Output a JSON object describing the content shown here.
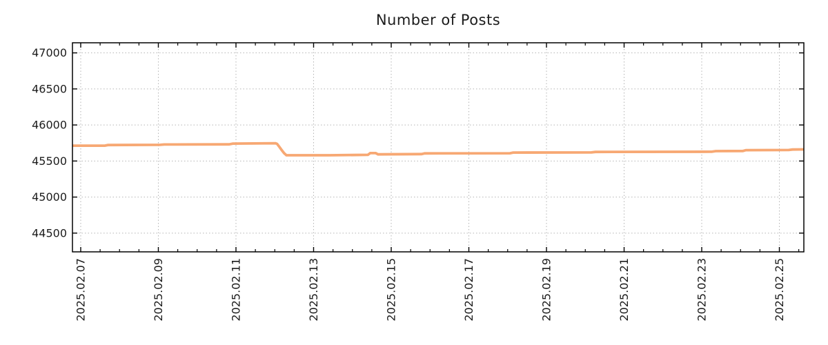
{
  "title": "Number of Posts",
  "colors": {
    "line": "#f7a873",
    "grid": "#b3b3b3",
    "axis": "#000000",
    "text": "#1c1c1c",
    "background": "#ffffff"
  },
  "chart_data": {
    "type": "line",
    "title": "Number of Posts",
    "xlabel": "",
    "ylabel": "",
    "legend": "none",
    "grid": {
      "style": "dotted",
      "color": "#b3b3b3",
      "on_major_ticks_only": true
    },
    "x_axis": {
      "unit": "days-since-2025.02.07",
      "range_days": [
        -0.213,
        18.631
      ],
      "major_tick_days": [
        0,
        2,
        4,
        6,
        8,
        10,
        12,
        14,
        16,
        18
      ],
      "tick_labels": [
        "2025.02.07",
        "2025.02.09",
        "2025.02.11",
        "2025.02.13",
        "2025.02.15",
        "2025.02.17",
        "2025.02.19",
        "2025.02.21",
        "2025.02.23",
        "2025.02.25"
      ],
      "minor_tick_interval_days": 0.5,
      "label_rotation_degrees": -90
    },
    "y_axis": {
      "range": [
        44240,
        47140
      ],
      "tick_values": [
        44500,
        45000,
        45500,
        46000,
        46500,
        47000
      ],
      "tick_labels": [
        "44500",
        "45000",
        "45500",
        "46000",
        "46500",
        "47000"
      ]
    },
    "series": [
      {
        "name": "number-of-posts",
        "color": "#f7a873",
        "stroke_width": 3.8,
        "points": [
          [
            -0.213,
            45713
          ],
          [
            0.62,
            45713
          ],
          [
            0.7,
            45722
          ],
          [
            2.05,
            45724
          ],
          [
            2.15,
            45729
          ],
          [
            3.82,
            45731
          ],
          [
            3.92,
            45742
          ],
          [
            5.02,
            45746
          ],
          [
            5.06,
            45738
          ],
          [
            5.12,
            45695
          ],
          [
            5.18,
            45650
          ],
          [
            5.24,
            45610
          ],
          [
            5.3,
            45580
          ],
          [
            6.4,
            45580
          ],
          [
            7.4,
            45586
          ],
          [
            7.46,
            45610
          ],
          [
            7.6,
            45610
          ],
          [
            7.66,
            45592
          ],
          [
            8.78,
            45596
          ],
          [
            8.86,
            45606
          ],
          [
            11.06,
            45608
          ],
          [
            11.14,
            45617
          ],
          [
            13.16,
            45619
          ],
          [
            13.26,
            45626
          ],
          [
            16.26,
            45629
          ],
          [
            16.36,
            45637
          ],
          [
            17.06,
            45639
          ],
          [
            17.14,
            45651
          ],
          [
            18.24,
            45653
          ],
          [
            18.34,
            45659
          ],
          [
            18.631,
            45661
          ]
        ]
      }
    ]
  }
}
